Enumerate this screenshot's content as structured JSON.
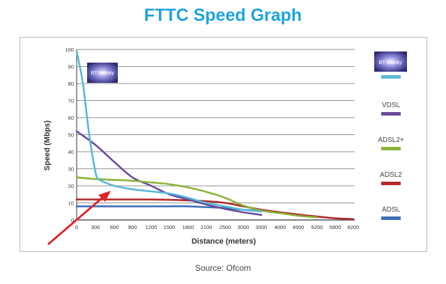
{
  "header": {
    "title": "FTTC Speed Graph"
  },
  "footer": {
    "source": "Source: Ofcom"
  },
  "badges": {
    "bt_infinity_chart": "BT Infinity",
    "bt_infinity_legend": "BT Infinity"
  },
  "colors": {
    "title": "#1fa3dc",
    "bt_infinity": "#59b8d6",
    "vdsl": "#6a4a9c",
    "adsl2plus": "#8bb33a",
    "adsl2": "#b02a2a",
    "adsl": "#3b6fb6",
    "arrow": "#e0262a",
    "grid": "#555555"
  },
  "chart_data": {
    "type": "line",
    "title": "FTTC Speed Graph",
    "xlabel": "Distance (meters)",
    "ylabel": "Speed (Mbps)",
    "x_ticks": [
      "0",
      "300",
      "600",
      "900",
      "1200",
      "1500",
      "1800",
      "2100",
      "2500",
      "3000",
      "3500",
      "4000",
      "4500",
      "5200",
      "5800",
      "6200"
    ],
    "y_ticks": [
      0,
      10,
      20,
      30,
      40,
      50,
      60,
      70,
      80,
      90,
      100
    ],
    "ylim": [
      0,
      100
    ],
    "grid": "horizontal",
    "legend_position": "right",
    "series": [
      {
        "name": "BT Infinity",
        "color": "#59b8d6",
        "points": [
          [
            0,
            99
          ],
          [
            100,
            80
          ],
          [
            200,
            50
          ],
          [
            300,
            28
          ],
          [
            350,
            24
          ],
          [
            450,
            22
          ],
          [
            600,
            20
          ],
          [
            900,
            18
          ],
          [
            1500,
            15.5
          ],
          [
            1800,
            13
          ],
          [
            2100,
            10
          ],
          [
            2500,
            8
          ],
          [
            3000,
            6
          ],
          [
            3500,
            5
          ]
        ]
      },
      {
        "name": "VDSL",
        "color": "#6a4a9c",
        "points": [
          [
            0,
            52
          ],
          [
            300,
            44
          ],
          [
            600,
            34
          ],
          [
            900,
            25
          ],
          [
            1200,
            20
          ],
          [
            1500,
            15
          ],
          [
            1800,
            12
          ],
          [
            2100,
            9
          ],
          [
            2500,
            6.5
          ],
          [
            3000,
            4.5
          ],
          [
            3500,
            3
          ]
        ]
      },
      {
        "name": "ADSL2+",
        "color": "#8bb33a",
        "points": [
          [
            0,
            25
          ],
          [
            300,
            24
          ],
          [
            600,
            23.5
          ],
          [
            900,
            23
          ],
          [
            1200,
            22
          ],
          [
            1500,
            21
          ],
          [
            1800,
            19
          ],
          [
            2100,
            16.5
          ],
          [
            2500,
            13
          ],
          [
            3000,
            8.5
          ],
          [
            3500,
            5.5
          ],
          [
            4000,
            4
          ],
          [
            4500,
            2.5
          ],
          [
            5200,
            1.5
          ]
        ]
      },
      {
        "name": "ADSL2",
        "color": "#b02a2a",
        "points": [
          [
            0,
            12
          ],
          [
            300,
            12
          ],
          [
            600,
            12
          ],
          [
            900,
            12
          ],
          [
            1200,
            12
          ],
          [
            1500,
            11.8
          ],
          [
            1800,
            11.5
          ],
          [
            2100,
            11
          ],
          [
            2500,
            10
          ],
          [
            3000,
            8
          ],
          [
            3500,
            6
          ],
          [
            4000,
            4.5
          ],
          [
            4500,
            3.2
          ],
          [
            5200,
            2
          ],
          [
            5800,
            1
          ],
          [
            6200,
            0.5
          ]
        ]
      },
      {
        "name": "ADSL",
        "color": "#3b6fb6",
        "points": [
          [
            0,
            8
          ],
          [
            300,
            8
          ],
          [
            600,
            8
          ],
          [
            900,
            8
          ],
          [
            1200,
            8
          ],
          [
            1500,
            8
          ],
          [
            1800,
            8
          ],
          [
            2100,
            7.5
          ],
          [
            2500,
            7
          ],
          [
            3000,
            6
          ],
          [
            3500,
            5.5
          ]
        ]
      }
    ],
    "annotations": [
      {
        "type": "arrow",
        "color": "#e0262a",
        "points_to": "BT Infinity",
        "at": [
          550,
          21
        ]
      }
    ]
  }
}
